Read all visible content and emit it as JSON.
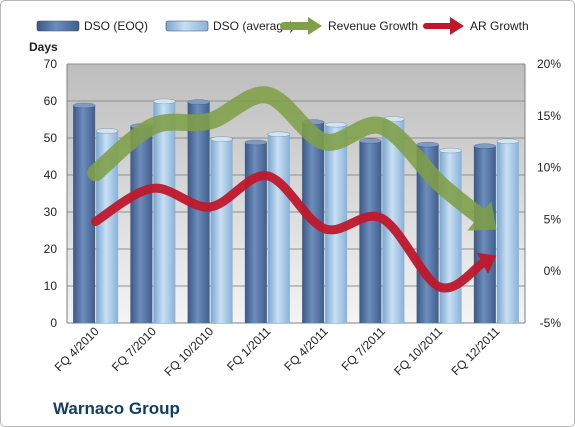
{
  "company_name": "Warnaco Group",
  "chart_data": {
    "type": "bar",
    "title": "",
    "categories": [
      "FQ 4/2010",
      "FQ 7/2010",
      "FQ 10/2010",
      "FQ 1/2011",
      "FQ 4/2011",
      "FQ 7/2011",
      "FQ 10/2011",
      "FQ 12/2011"
    ],
    "y_left": {
      "label": "Days",
      "min": 0,
      "max": 70,
      "step": 10,
      "ticks": [
        "0",
        "10",
        "20",
        "30",
        "40",
        "50",
        "60",
        "70"
      ]
    },
    "y_right": {
      "min": -5,
      "max": 20,
      "step": 5,
      "ticks": [
        "-5%",
        "0%",
        "5%",
        "10%",
        "15%",
        "20%"
      ]
    },
    "grid": true,
    "legend_position": "top",
    "bar_series": [
      {
        "name": "DSO (EOQ)",
        "color": "#4f6fa0",
        "values": [
          58.8,
          53.2,
          59.7,
          48.8,
          54.3,
          49.2,
          48.2,
          47.8
        ]
      },
      {
        "name": "DSO (average)",
        "color": "#9cc3e5",
        "values": [
          51.9,
          59.9,
          49.7,
          51.0,
          53.6,
          55.1,
          46.6,
          49.1
        ]
      }
    ],
    "line_series": [
      {
        "name": "Revenue Growth",
        "color": "#7f9f48",
        "values": [
          9.5,
          14.0,
          14.5,
          17.0,
          12.5,
          14.0,
          8.5,
          4.0
        ]
      },
      {
        "name": "AR Growth",
        "color": "#c0172b",
        "values": [
          4.8,
          8.0,
          6.2,
          9.2,
          4.1,
          5.1,
          -1.5,
          1.5
        ]
      }
    ]
  }
}
